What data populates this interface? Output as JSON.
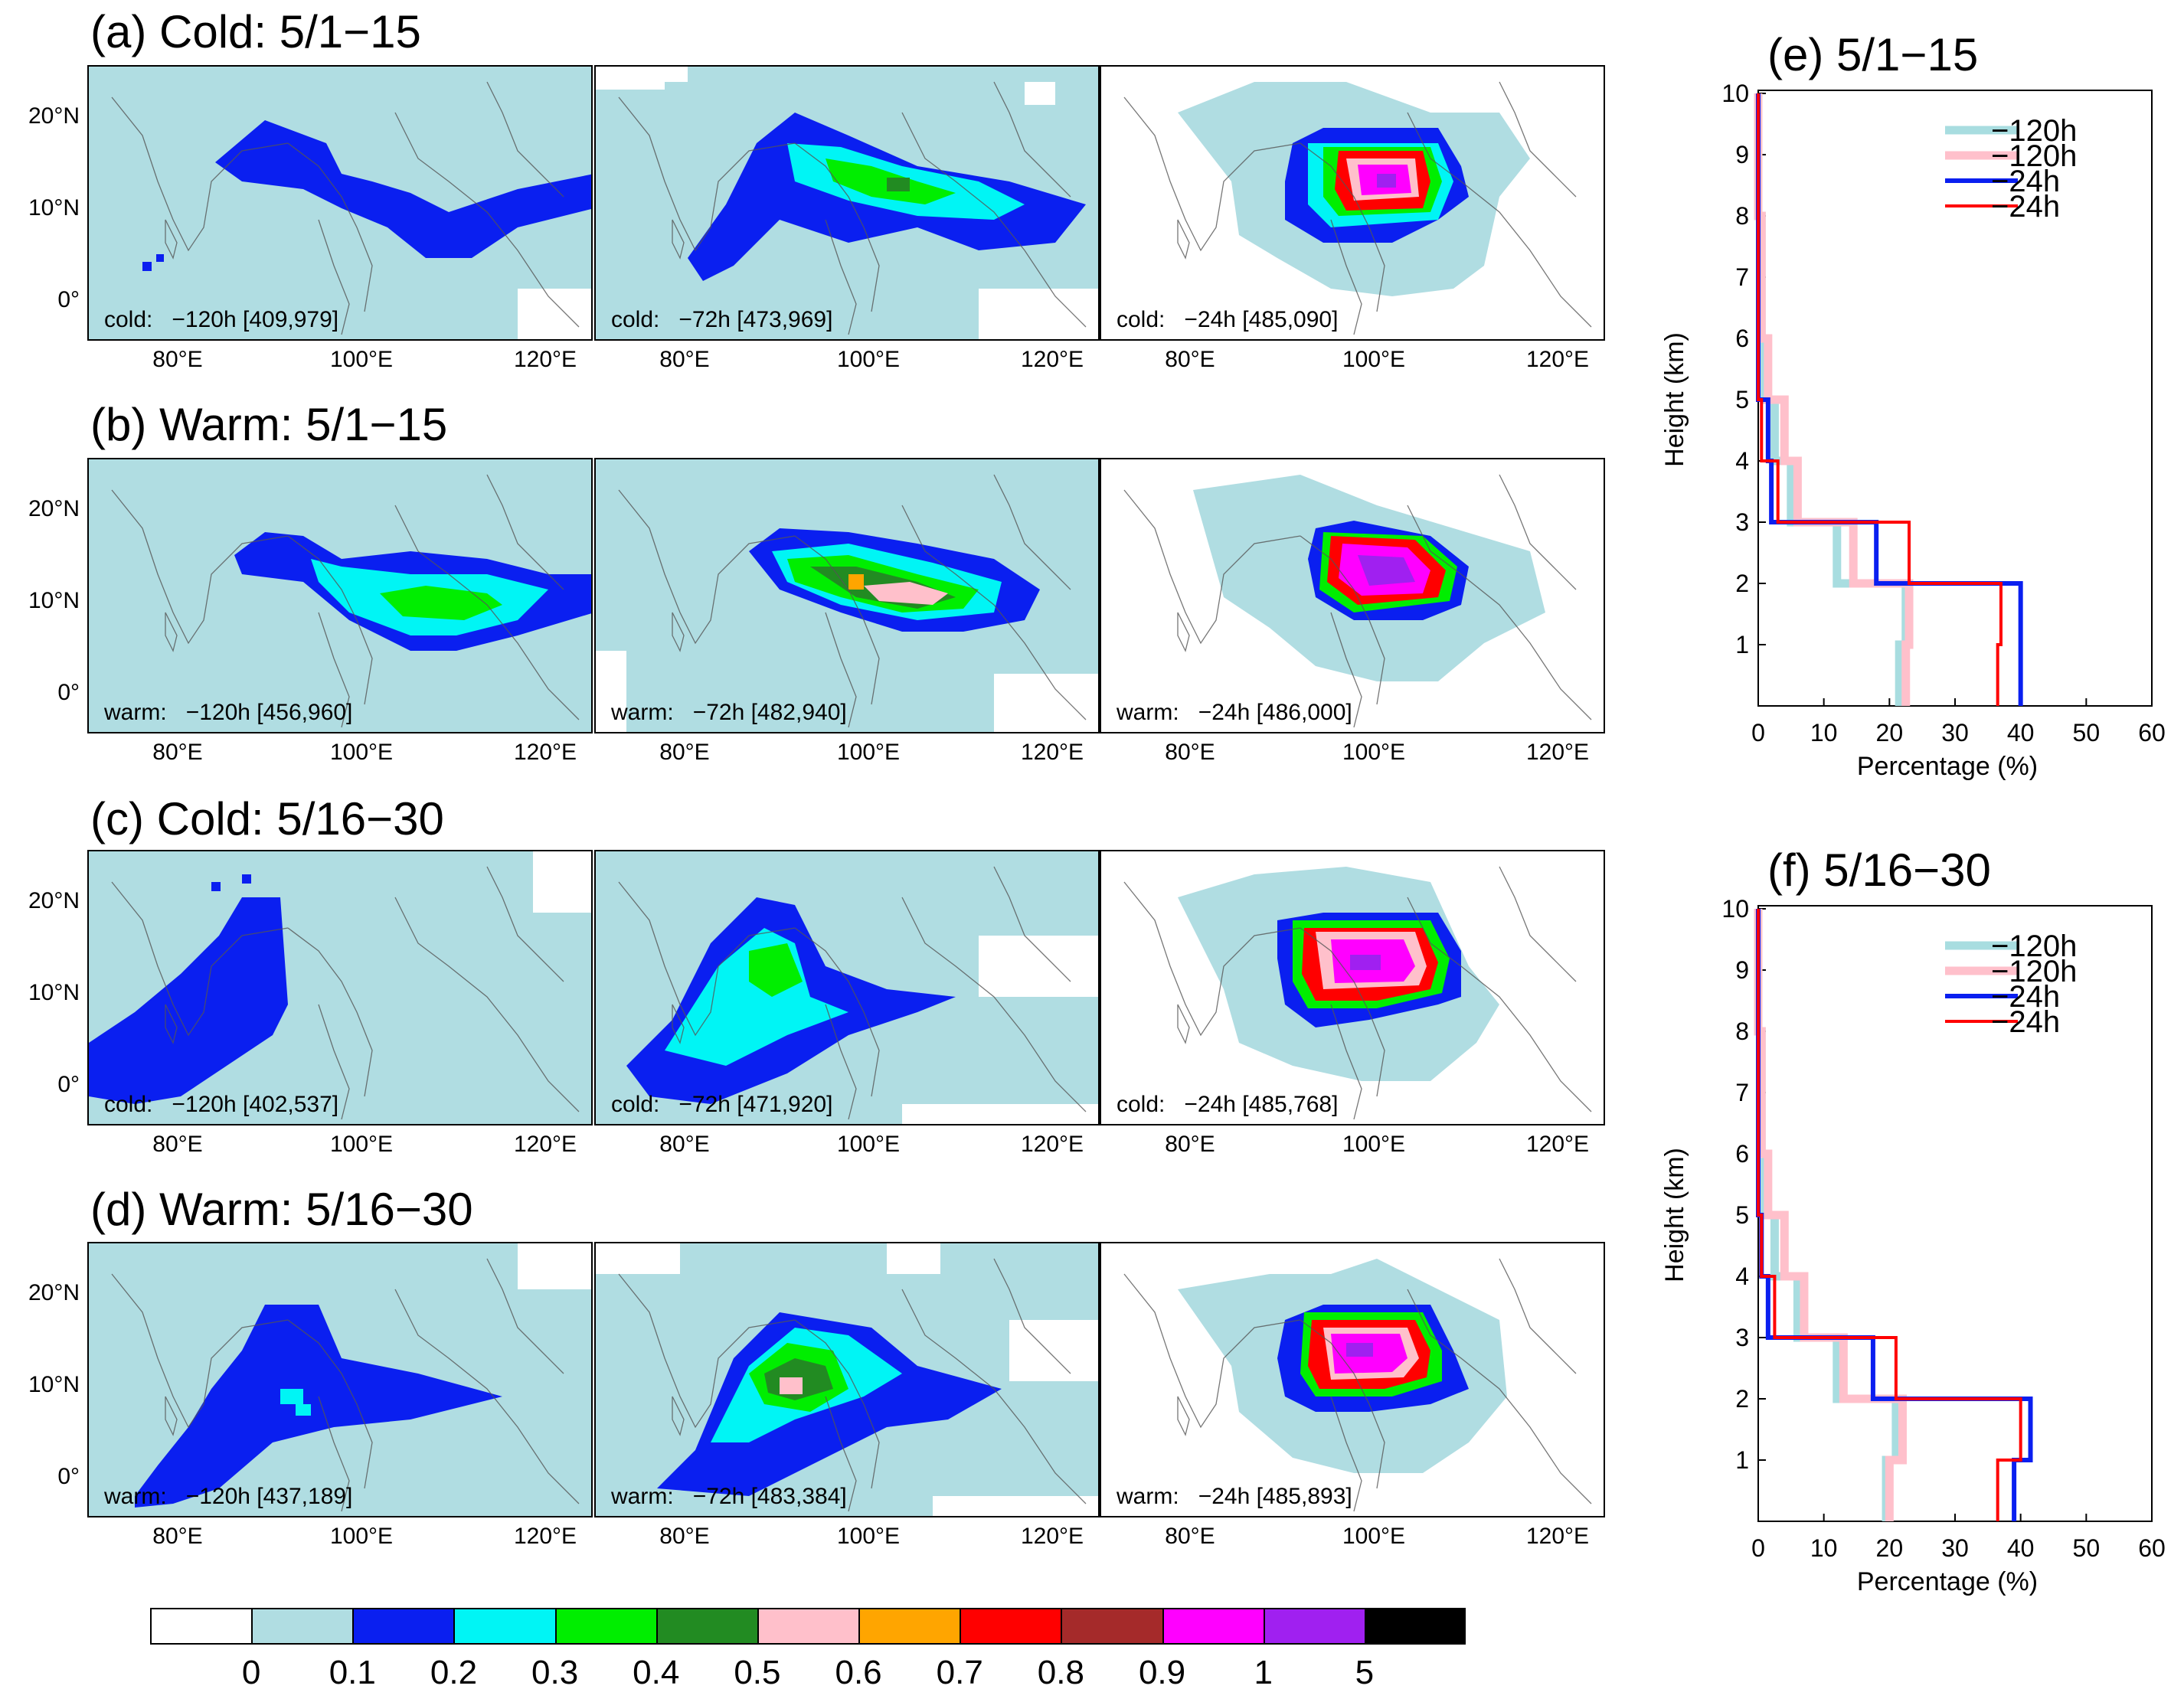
{
  "rows": [
    {
      "title": "(a) Cold: 5/1−15",
      "panels": [
        {
          "label_kind": "cold:",
          "label_value": "−120h [409,979]"
        },
        {
          "label_kind": "cold:",
          "label_value": "−72h [473,969]"
        },
        {
          "label_kind": "cold:",
          "label_value": "−24h [485,090]"
        }
      ]
    },
    {
      "title": "(b) Warm: 5/1−15",
      "panels": [
        {
          "label_kind": "warm:",
          "label_value": "−120h [456,960]"
        },
        {
          "label_kind": "warm:",
          "label_value": "−72h [482,940]"
        },
        {
          "label_kind": "warm:",
          "label_value": "−24h [486,000]"
        }
      ]
    },
    {
      "title": "(c) Cold: 5/16−30",
      "panels": [
        {
          "label_kind": "cold:",
          "label_value": "−120h [402,537]"
        },
        {
          "label_kind": "cold:",
          "label_value": "−72h [471,920]"
        },
        {
          "label_kind": "cold:",
          "label_value": "−24h [485,768]"
        }
      ]
    },
    {
      "title": "(d) Warm: 5/16−30",
      "panels": [
        {
          "label_kind": "warm:",
          "label_value": "−120h [437,189]"
        },
        {
          "label_kind": "warm:",
          "label_value": "−72h [483,384]"
        },
        {
          "label_kind": "warm:",
          "label_value": "−24h [485,893]"
        }
      ]
    }
  ],
  "map_axes": {
    "lat_ticks": [
      "20°N",
      "10°N",
      "0°"
    ],
    "lon_ticks": [
      "80°E",
      "100°E",
      "120°E"
    ]
  },
  "colorbar": {
    "colors": [
      "#ffffff",
      "#b0dde2",
      "#0a1ff0",
      "#00f5f5",
      "#00ee00",
      "#228b22",
      "#ffc0cb",
      "#ffa500",
      "#ff0000",
      "#a52a2a",
      "#ff00ff",
      "#a020f0",
      "#000000"
    ],
    "labels": [
      "0",
      "0.1",
      "0.2",
      "0.3",
      "0.4",
      "0.5",
      "0.6",
      "0.7",
      "0.8",
      "0.9",
      "1",
      "5"
    ]
  },
  "chart_data": [
    {
      "type": "line",
      "title": "(e) 5/1−15",
      "xlabel": "Percentage (%)",
      "ylabel": "Height (km)",
      "xlim": [
        0,
        60
      ],
      "ylim": [
        0,
        10
      ],
      "xticks": [
        "0",
        "10",
        "20",
        "30",
        "40",
        "50",
        "60"
      ],
      "yticks": [
        "1",
        "2",
        "3",
        "4",
        "5",
        "6",
        "7",
        "8",
        "9",
        "10"
      ],
      "legend_position": "top-right",
      "series": [
        {
          "name": "−120h",
          "color": "#a8dde0",
          "width": "thick",
          "x": [
            21.5,
            21.5,
            22.5,
            22.5,
            12,
            12,
            5,
            5,
            2.5,
            2.5,
            1,
            1,
            0.5,
            0.5,
            0,
            0
          ],
          "y": [
            0,
            1,
            1,
            2,
            2,
            3,
            3,
            4,
            4,
            5,
            5,
            6,
            6,
            8,
            8,
            10
          ]
        },
        {
          "name": "−120h",
          "color": "#ffc0cb",
          "width": "thick",
          "x": [
            22.5,
            22.5,
            23,
            23,
            14.5,
            14.5,
            6,
            6,
            4,
            4,
            1.5,
            1.5,
            0.5,
            0.5,
            0,
            0
          ],
          "y": [
            0,
            1,
            1,
            2,
            2,
            3,
            3,
            4,
            4,
            5,
            5,
            6,
            6,
            8,
            8,
            10
          ]
        },
        {
          "name": "−24h",
          "color": "#0a1ff0",
          "width": "medium",
          "x": [
            40,
            40,
            40,
            40,
            18,
            18,
            2,
            2,
            1.5,
            1.5,
            0,
            0
          ],
          "y": [
            0,
            1,
            1,
            2,
            2,
            3,
            3,
            4,
            4,
            5,
            5,
            10
          ]
        },
        {
          "name": "−24h",
          "color": "#ff0000",
          "width": "thin",
          "x": [
            36.5,
            36.5,
            37,
            37,
            23,
            23,
            3,
            3,
            0.5,
            0.5,
            0,
            0
          ],
          "y": [
            0,
            1,
            1,
            2,
            2,
            3,
            3,
            4,
            4,
            5,
            5,
            10
          ]
        }
      ]
    },
    {
      "type": "line",
      "title": "(f) 5/16−30",
      "xlabel": "Percentage (%)",
      "ylabel": "Height (km)",
      "xlim": [
        0,
        60
      ],
      "ylim": [
        0,
        10
      ],
      "xticks": [
        "0",
        "10",
        "20",
        "30",
        "40",
        "50",
        "60"
      ],
      "yticks": [
        "1",
        "2",
        "3",
        "4",
        "5",
        "6",
        "7",
        "8",
        "9",
        "10"
      ],
      "legend_position": "top-right",
      "series": [
        {
          "name": "−120h",
          "color": "#a8dde0",
          "width": "thick",
          "x": [
            19.5,
            19.5,
            21,
            21,
            12,
            12,
            6,
            6,
            2.5,
            2.5,
            1,
            1,
            0.5,
            0.5,
            0,
            0
          ],
          "y": [
            0,
            1,
            1,
            2,
            2,
            3,
            3,
            4,
            4,
            5,
            5,
            6,
            6,
            8,
            8,
            10
          ]
        },
        {
          "name": "−120h",
          "color": "#ffc0cb",
          "width": "thick",
          "x": [
            20,
            20,
            22,
            22,
            13,
            13,
            7,
            7,
            4,
            4,
            1.5,
            1.5,
            0.5,
            0.5,
            0,
            0
          ],
          "y": [
            0,
            1,
            1,
            2,
            2,
            3,
            3,
            4,
            4,
            5,
            5,
            6,
            6,
            8,
            8,
            10
          ]
        },
        {
          "name": "−24h",
          "color": "#0a1ff0",
          "width": "medium",
          "x": [
            39,
            39,
            41.5,
            41.5,
            17.5,
            17.5,
            1.5,
            1.5,
            0.5,
            0.5,
            0,
            0
          ],
          "y": [
            0,
            1,
            1,
            2,
            2,
            3,
            3,
            4,
            4,
            5,
            5,
            10
          ]
        },
        {
          "name": "−24h",
          "color": "#ff0000",
          "width": "thin",
          "x": [
            36.5,
            36.5,
            40,
            40,
            21,
            21,
            2.5,
            2.5,
            0.5,
            0.5,
            0,
            0
          ],
          "y": [
            0,
            1,
            1,
            2,
            2,
            3,
            3,
            4,
            4,
            5,
            5,
            10
          ]
        }
      ]
    }
  ]
}
